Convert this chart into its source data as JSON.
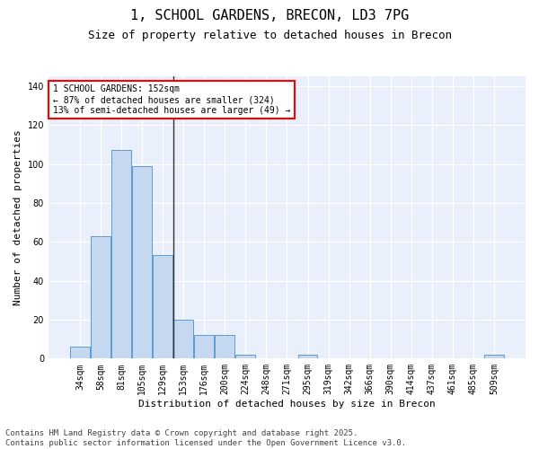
{
  "title": "1, SCHOOL GARDENS, BRECON, LD3 7PG",
  "subtitle": "Size of property relative to detached houses in Brecon",
  "xlabel": "Distribution of detached houses by size in Brecon",
  "ylabel": "Number of detached properties",
  "bar_color": "#c5d8f0",
  "bar_edge_color": "#5b9bd5",
  "background_color": "#eaf0fb",
  "categories": [
    "34sqm",
    "58sqm",
    "81sqm",
    "105sqm",
    "129sqm",
    "153sqm",
    "176sqm",
    "200sqm",
    "224sqm",
    "248sqm",
    "271sqm",
    "295sqm",
    "319sqm",
    "342sqm",
    "366sqm",
    "390sqm",
    "414sqm",
    "437sqm",
    "461sqm",
    "485sqm",
    "509sqm"
  ],
  "values": [
    6,
    63,
    107,
    99,
    53,
    20,
    12,
    12,
    2,
    0,
    0,
    2,
    0,
    0,
    0,
    0,
    0,
    0,
    0,
    0,
    2
  ],
  "ylim": [
    0,
    145
  ],
  "yticks": [
    0,
    20,
    40,
    60,
    80,
    100,
    120,
    140
  ],
  "annotation_text": "1 SCHOOL GARDENS: 152sqm\n← 87% of detached houses are smaller (324)\n13% of semi-detached houses are larger (49) →",
  "vline_index": 5,
  "footer": "Contains HM Land Registry data © Crown copyright and database right 2025.\nContains public sector information licensed under the Open Government Licence v3.0.",
  "title_fontsize": 11,
  "subtitle_fontsize": 9,
  "xlabel_fontsize": 8,
  "ylabel_fontsize": 8,
  "tick_fontsize": 7,
  "annotation_fontsize": 7,
  "footer_fontsize": 6.5
}
